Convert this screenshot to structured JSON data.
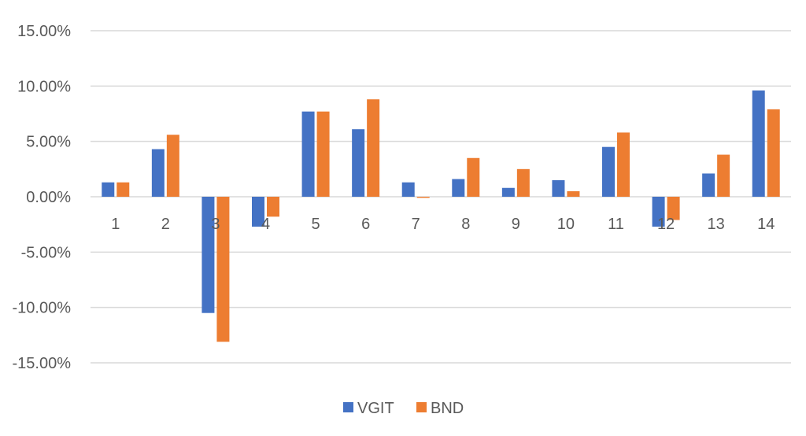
{
  "chart_data": {
    "type": "bar",
    "categories": [
      "1",
      "2",
      "3",
      "4",
      "5",
      "6",
      "7",
      "8",
      "9",
      "10",
      "11",
      "12",
      "13",
      "14"
    ],
    "series": [
      {
        "name": "VGIT",
        "color": "#4472C4",
        "values": [
          1.3,
          4.3,
          -10.5,
          -2.7,
          7.7,
          6.1,
          1.3,
          1.6,
          0.8,
          1.5,
          4.5,
          -2.7,
          2.1,
          9.6
        ]
      },
      {
        "name": "BND",
        "color": "#ED7D31",
        "values": [
          1.3,
          5.6,
          -13.1,
          -1.8,
          7.7,
          8.8,
          -0.1,
          3.5,
          2.5,
          0.5,
          5.8,
          -2.1,
          3.8,
          7.9
        ]
      }
    ],
    "ylim": [
      -15,
      15
    ],
    "yticks": [
      15,
      10,
      5,
      0,
      -5,
      -10,
      -15
    ],
    "ytick_labels": [
      "15.00%",
      "10.00%",
      "5.00%",
      "0.00%",
      "-5.00%",
      "-10.00%",
      "-15.00%"
    ],
    "y_unit": "percent",
    "grid": true,
    "legend_position": "bottom-center",
    "title": "",
    "xlabel": "",
    "ylabel": ""
  }
}
